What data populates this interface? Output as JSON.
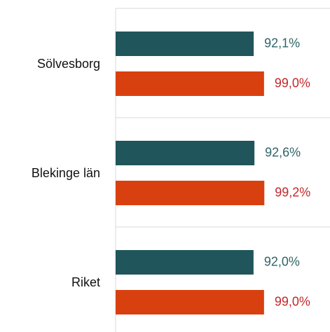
{
  "chart_data": {
    "type": "hbar",
    "categories": [
      "Sölvesborg",
      "Blekinge län",
      "Riket"
    ],
    "series": [
      {
        "color": "#20555c",
        "label_color": "#2f6468",
        "values": [
          92.1,
          92.6,
          92.0
        ],
        "value_labels": [
          "92,1%",
          "92,6%",
          "92,0%"
        ]
      },
      {
        "color": "#d9400f",
        "label_color": "#c4272a",
        "values": [
          99.0,
          99.2,
          99.0
        ],
        "value_labels": [
          "99,0%",
          "99,2%",
          "99,0%"
        ]
      }
    ],
    "xlim": [
      0,
      143
    ]
  }
}
